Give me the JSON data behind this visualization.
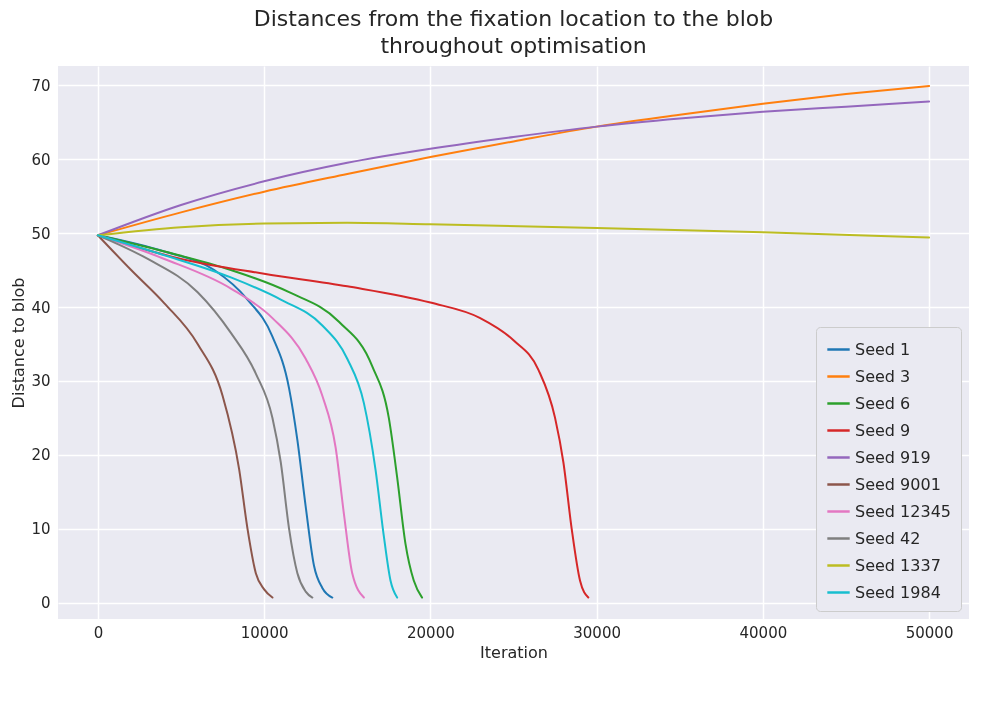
{
  "chart_data": {
    "type": "line",
    "title": "Distances from the fixation location to the blob\nthroughout optimisation",
    "xlabel": "Iteration",
    "ylabel": "Distance to blob",
    "xlim": [
      -2400,
      52400
    ],
    "ylim": [
      -2.2,
      72.6
    ],
    "xticks": [
      0,
      10000,
      20000,
      30000,
      40000,
      50000
    ],
    "yticks": [
      0,
      10,
      20,
      30,
      40,
      50,
      60,
      70
    ],
    "grid": true,
    "legend": "bottom right",
    "series": [
      {
        "name": "Seed 1",
        "color": "#1f77b4",
        "x": [
          0,
          4000,
          7000,
          9000,
          10500,
          11500,
          12000,
          12500,
          13000,
          13500,
          14100
        ],
        "values": [
          49.7,
          47.5,
          45,
          41,
          36,
          29,
          22,
          13,
          5,
          2,
          0.7
        ]
      },
      {
        "name": "Seed 3",
        "color": "#ff7f0e",
        "x": [
          0,
          5000,
          10000,
          15000,
          20000,
          25000,
          30000,
          35000,
          40000,
          45000,
          50000
        ],
        "values": [
          49.7,
          52.8,
          55.6,
          58,
          60.3,
          62.4,
          64.4,
          66,
          67.5,
          68.8,
          69.9
        ]
      },
      {
        "name": "Seed 6",
        "color": "#2ca02c",
        "x": [
          0,
          4000,
          8000,
          11500,
          14500,
          16500,
          17500,
          18000,
          18500,
          19000,
          19500
        ],
        "values": [
          49.7,
          47.5,
          45,
          42,
          38,
          32,
          25,
          17,
          8,
          3,
          0.7
        ]
      },
      {
        "name": "Seed 9",
        "color": "#d62728",
        "x": [
          0,
          5000,
          10000,
          15000,
          20000,
          23000,
          25000,
          26500,
          27500,
          28000,
          28500,
          29000,
          29500
        ],
        "values": [
          49.7,
          46.5,
          44.5,
          42.8,
          40.6,
          38.5,
          35.5,
          31.5,
          25,
          19,
          10,
          3,
          0.7
        ]
      },
      {
        "name": "Seed 919",
        "color": "#9467bd",
        "x": [
          0,
          5000,
          10000,
          15000,
          20000,
          25000,
          30000,
          35000,
          40000,
          45000,
          50000
        ],
        "values": [
          49.7,
          53.8,
          57,
          59.5,
          61.4,
          63,
          64.4,
          65.5,
          66.4,
          67.1,
          67.8
        ]
      },
      {
        "name": "Seed 9001",
        "color": "#8c564b",
        "x": [
          0,
          2000,
          4000,
          6000,
          7500,
          8500,
          9000,
          9500,
          10000,
          10500
        ],
        "values": [
          49.7,
          45,
          40.5,
          35,
          28,
          18,
          10,
          4,
          1.8,
          0.7
        ]
      },
      {
        "name": "Seed 12345",
        "color": "#e377c2",
        "x": [
          0,
          4000,
          8000,
          10500,
          12500,
          13500,
          14300,
          14800,
          15300,
          16000
        ],
        "values": [
          49.7,
          46.5,
          42.5,
          38.5,
          33,
          28,
          21,
          12,
          4,
          0.7
        ]
      },
      {
        "name": "Seed 42",
        "color": "#7f7f7f",
        "x": [
          0,
          3000,
          6000,
          8000,
          9500,
          10500,
          11000,
          11500,
          12000,
          12500,
          12900
        ],
        "values": [
          49.7,
          46.5,
          42,
          36.5,
          31,
          25,
          19,
          10,
          4,
          1.5,
          0.7
        ]
      },
      {
        "name": "Seed 1337",
        "color": "#bcbd22",
        "x": [
          0,
          5000,
          10000,
          15000,
          20000,
          30000,
          40000,
          50000
        ],
        "values": [
          49.7,
          50.8,
          51.3,
          51.4,
          51.2,
          50.7,
          50.1,
          49.4
        ]
      },
      {
        "name": "Seed 1984",
        "color": "#17becf",
        "x": [
          0,
          4000,
          8000,
          11000,
          13500,
          15000,
          16000,
          16700,
          17200,
          17600,
          18000
        ],
        "values": [
          49.7,
          47,
          44,
          41,
          37.5,
          33,
          27,
          18,
          9,
          3,
          0.7
        ]
      }
    ]
  }
}
